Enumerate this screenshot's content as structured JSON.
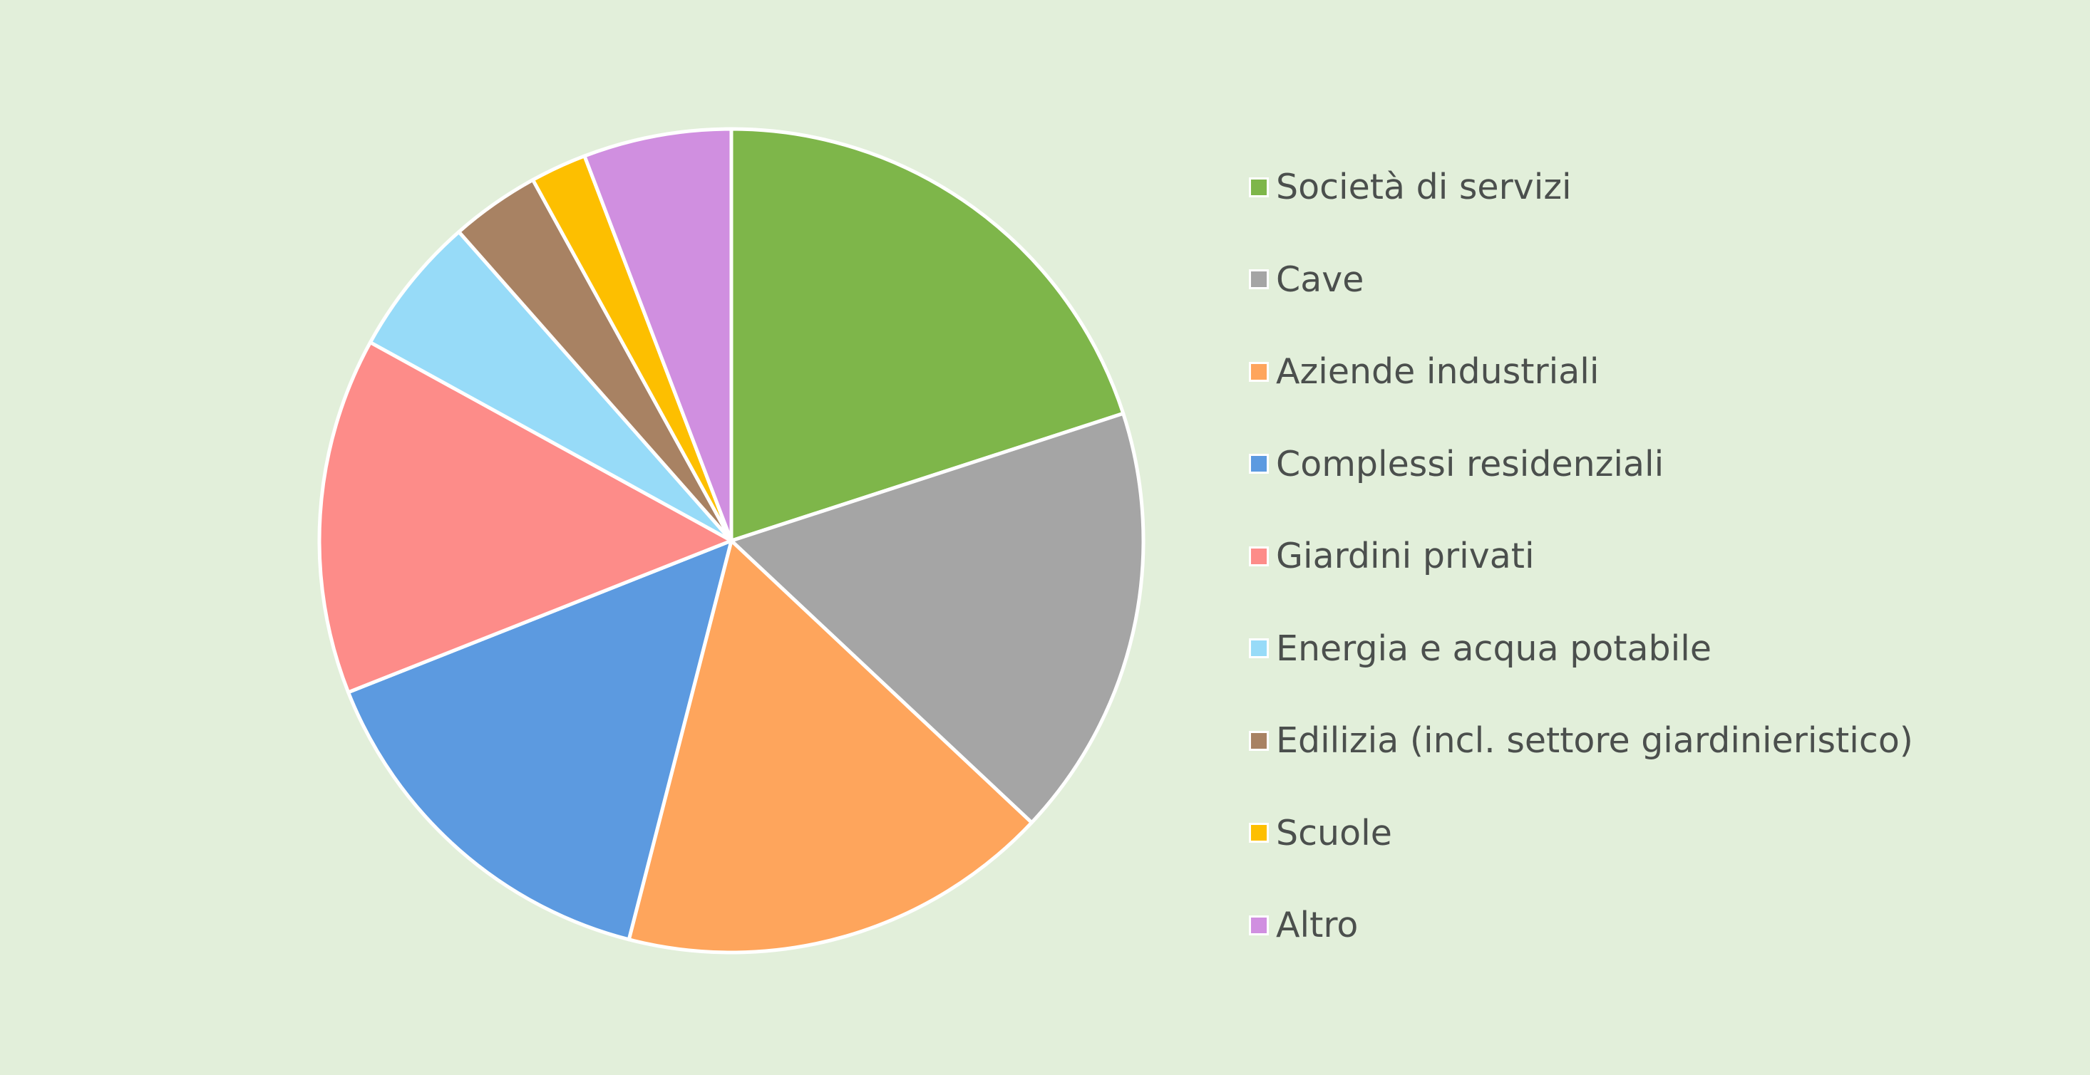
{
  "colors": {
    "background": "#e2efda",
    "slice_border": "#ffffff",
    "legend_text": "#4b4f4d"
  },
  "chart_data": {
    "type": "pie",
    "title": "",
    "start_angle_deg": 0,
    "direction": "clockwise",
    "legend_position": "right",
    "unit": "percent (estimated from slice angles)",
    "slices": [
      {
        "label": "Società di servizi",
        "value": 20,
        "color": "#7eb64a"
      },
      {
        "label": "Cave",
        "value": 17,
        "color": "#a5a5a5"
      },
      {
        "label": "Aziende industriali",
        "value": 17,
        "color": "#fea55c"
      },
      {
        "label": "Complessi residenziali",
        "value": 15,
        "color": "#5c9ae0"
      },
      {
        "label": "Giardini privati",
        "value": 14,
        "color": "#fd8c89"
      },
      {
        "label": "Energia e acqua potabile",
        "value": 5.5,
        "color": "#97dbf8"
      },
      {
        "label": "Edilizia (incl. settore giardinieristico)",
        "value": 3.5,
        "color": "#a88263"
      },
      {
        "label": "Scuole",
        "value": 2.2,
        "color": "#fdbf00"
      },
      {
        "label": "Altro",
        "value": 5.8,
        "color": "#d08fe0"
      }
    ]
  }
}
